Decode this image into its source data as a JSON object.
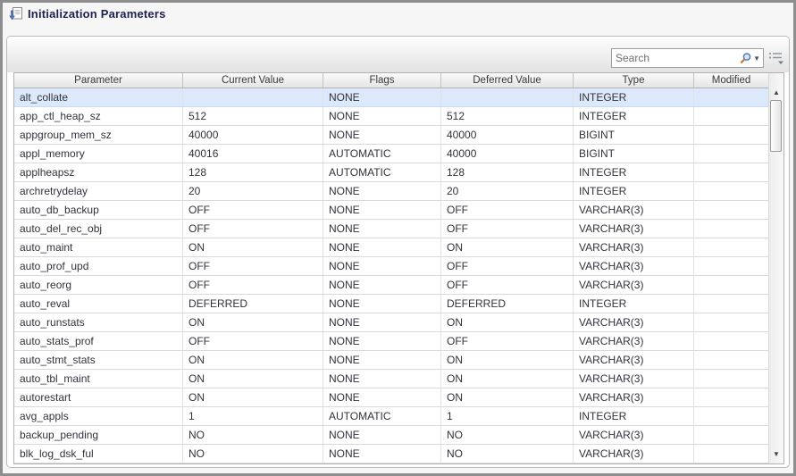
{
  "window": {
    "title": "Initialization Parameters"
  },
  "toolbar": {
    "search_placeholder": "Search",
    "icons": [
      "search-icon",
      "search-options-caret",
      "view-menu-icon"
    ]
  },
  "colors": {
    "selection_bg": "#dce9fb",
    "title_text": "#1c2150",
    "header_gradient_top": "#fafafa",
    "header_gradient_bottom": "#e5e5e5",
    "window_border": "#8d8d8d"
  },
  "table": {
    "columns": [
      "Parameter",
      "Current Value",
      "Flags",
      "Deferred Value",
      "Type",
      "Modified"
    ],
    "selected_row_index": 0,
    "rows": [
      [
        "alt_collate",
        "",
        "NONE",
        "",
        "INTEGER",
        ""
      ],
      [
        "app_ctl_heap_sz",
        "512",
        "NONE",
        "512",
        "INTEGER",
        ""
      ],
      [
        "appgroup_mem_sz",
        "40000",
        "NONE",
        "40000",
        "BIGINT",
        ""
      ],
      [
        "appl_memory",
        "40016",
        "AUTOMATIC",
        "40000",
        "BIGINT",
        ""
      ],
      [
        "applheapsz",
        "128",
        "AUTOMATIC",
        "128",
        "INTEGER",
        ""
      ],
      [
        "archretrydelay",
        "20",
        "NONE",
        "20",
        "INTEGER",
        ""
      ],
      [
        "auto_db_backup",
        "OFF",
        "NONE",
        "OFF",
        "VARCHAR(3)",
        ""
      ],
      [
        "auto_del_rec_obj",
        "OFF",
        "NONE",
        "OFF",
        "VARCHAR(3)",
        ""
      ],
      [
        "auto_maint",
        "ON",
        "NONE",
        "ON",
        "VARCHAR(3)",
        ""
      ],
      [
        "auto_prof_upd",
        "OFF",
        "NONE",
        "OFF",
        "VARCHAR(3)",
        ""
      ],
      [
        "auto_reorg",
        "OFF",
        "NONE",
        "OFF",
        "VARCHAR(3)",
        ""
      ],
      [
        "auto_reval",
        "DEFERRED",
        "NONE",
        "DEFERRED",
        "INTEGER",
        ""
      ],
      [
        "auto_runstats",
        "ON",
        "NONE",
        "ON",
        "VARCHAR(3)",
        ""
      ],
      [
        "auto_stats_prof",
        "OFF",
        "NONE",
        "OFF",
        "VARCHAR(3)",
        ""
      ],
      [
        "auto_stmt_stats",
        "ON",
        "NONE",
        "ON",
        "VARCHAR(3)",
        ""
      ],
      [
        "auto_tbl_maint",
        "ON",
        "NONE",
        "ON",
        "VARCHAR(3)",
        ""
      ],
      [
        "autorestart",
        "ON",
        "NONE",
        "ON",
        "VARCHAR(3)",
        ""
      ],
      [
        "avg_appls",
        "1",
        "AUTOMATIC",
        "1",
        "INTEGER",
        ""
      ],
      [
        "backup_pending",
        "NO",
        "NONE",
        "NO",
        "VARCHAR(3)",
        ""
      ],
      [
        "blk_log_dsk_ful",
        "NO",
        "NONE",
        "NO",
        "VARCHAR(3)",
        ""
      ]
    ]
  }
}
